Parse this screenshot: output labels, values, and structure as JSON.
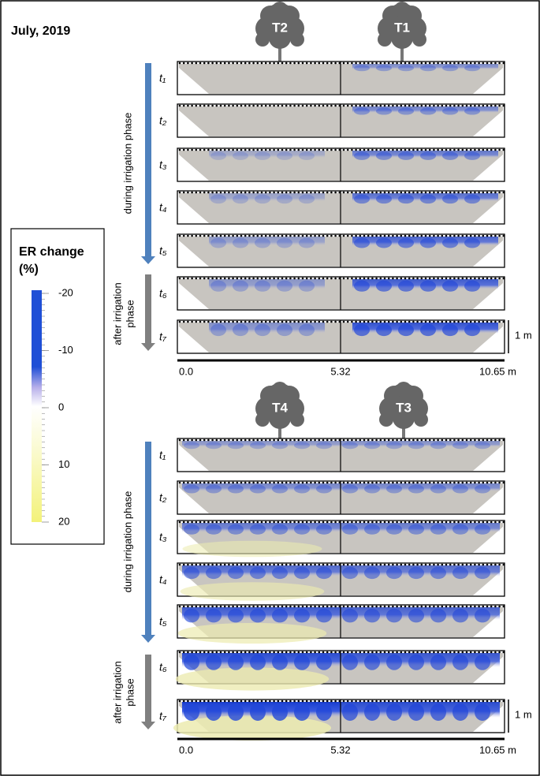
{
  "title": "July, 2019",
  "legend": {
    "title": "ER change",
    "unit": "(%)",
    "ticks": [
      "-20",
      "-10",
      "0",
      "10",
      "20"
    ]
  },
  "panels": [
    {
      "trees": [
        "T2",
        "T1"
      ],
      "phases": {
        "during": "during irrigation phase",
        "after": [
          "after irrigation",
          "phase"
        ]
      },
      "rows": [
        "t₁",
        "t₂",
        "t₃",
        "t₄",
        "t₅",
        "t₆",
        "t₇"
      ],
      "scale": "1 m",
      "axis": [
        "0.0",
        "5.32",
        "10.65 m"
      ]
    },
    {
      "trees": [
        "T4",
        "T3"
      ],
      "phases": {
        "during": "during irrigation phase",
        "after": [
          "after irrigation",
          "phase"
        ]
      },
      "rows": [
        "t₁",
        "t₂",
        "t₃",
        "t₄",
        "t₅",
        "t₆",
        "t₇"
      ],
      "scale": "1 m",
      "axis": [
        "0.0",
        "5.32",
        "10.65 m"
      ]
    }
  ]
}
